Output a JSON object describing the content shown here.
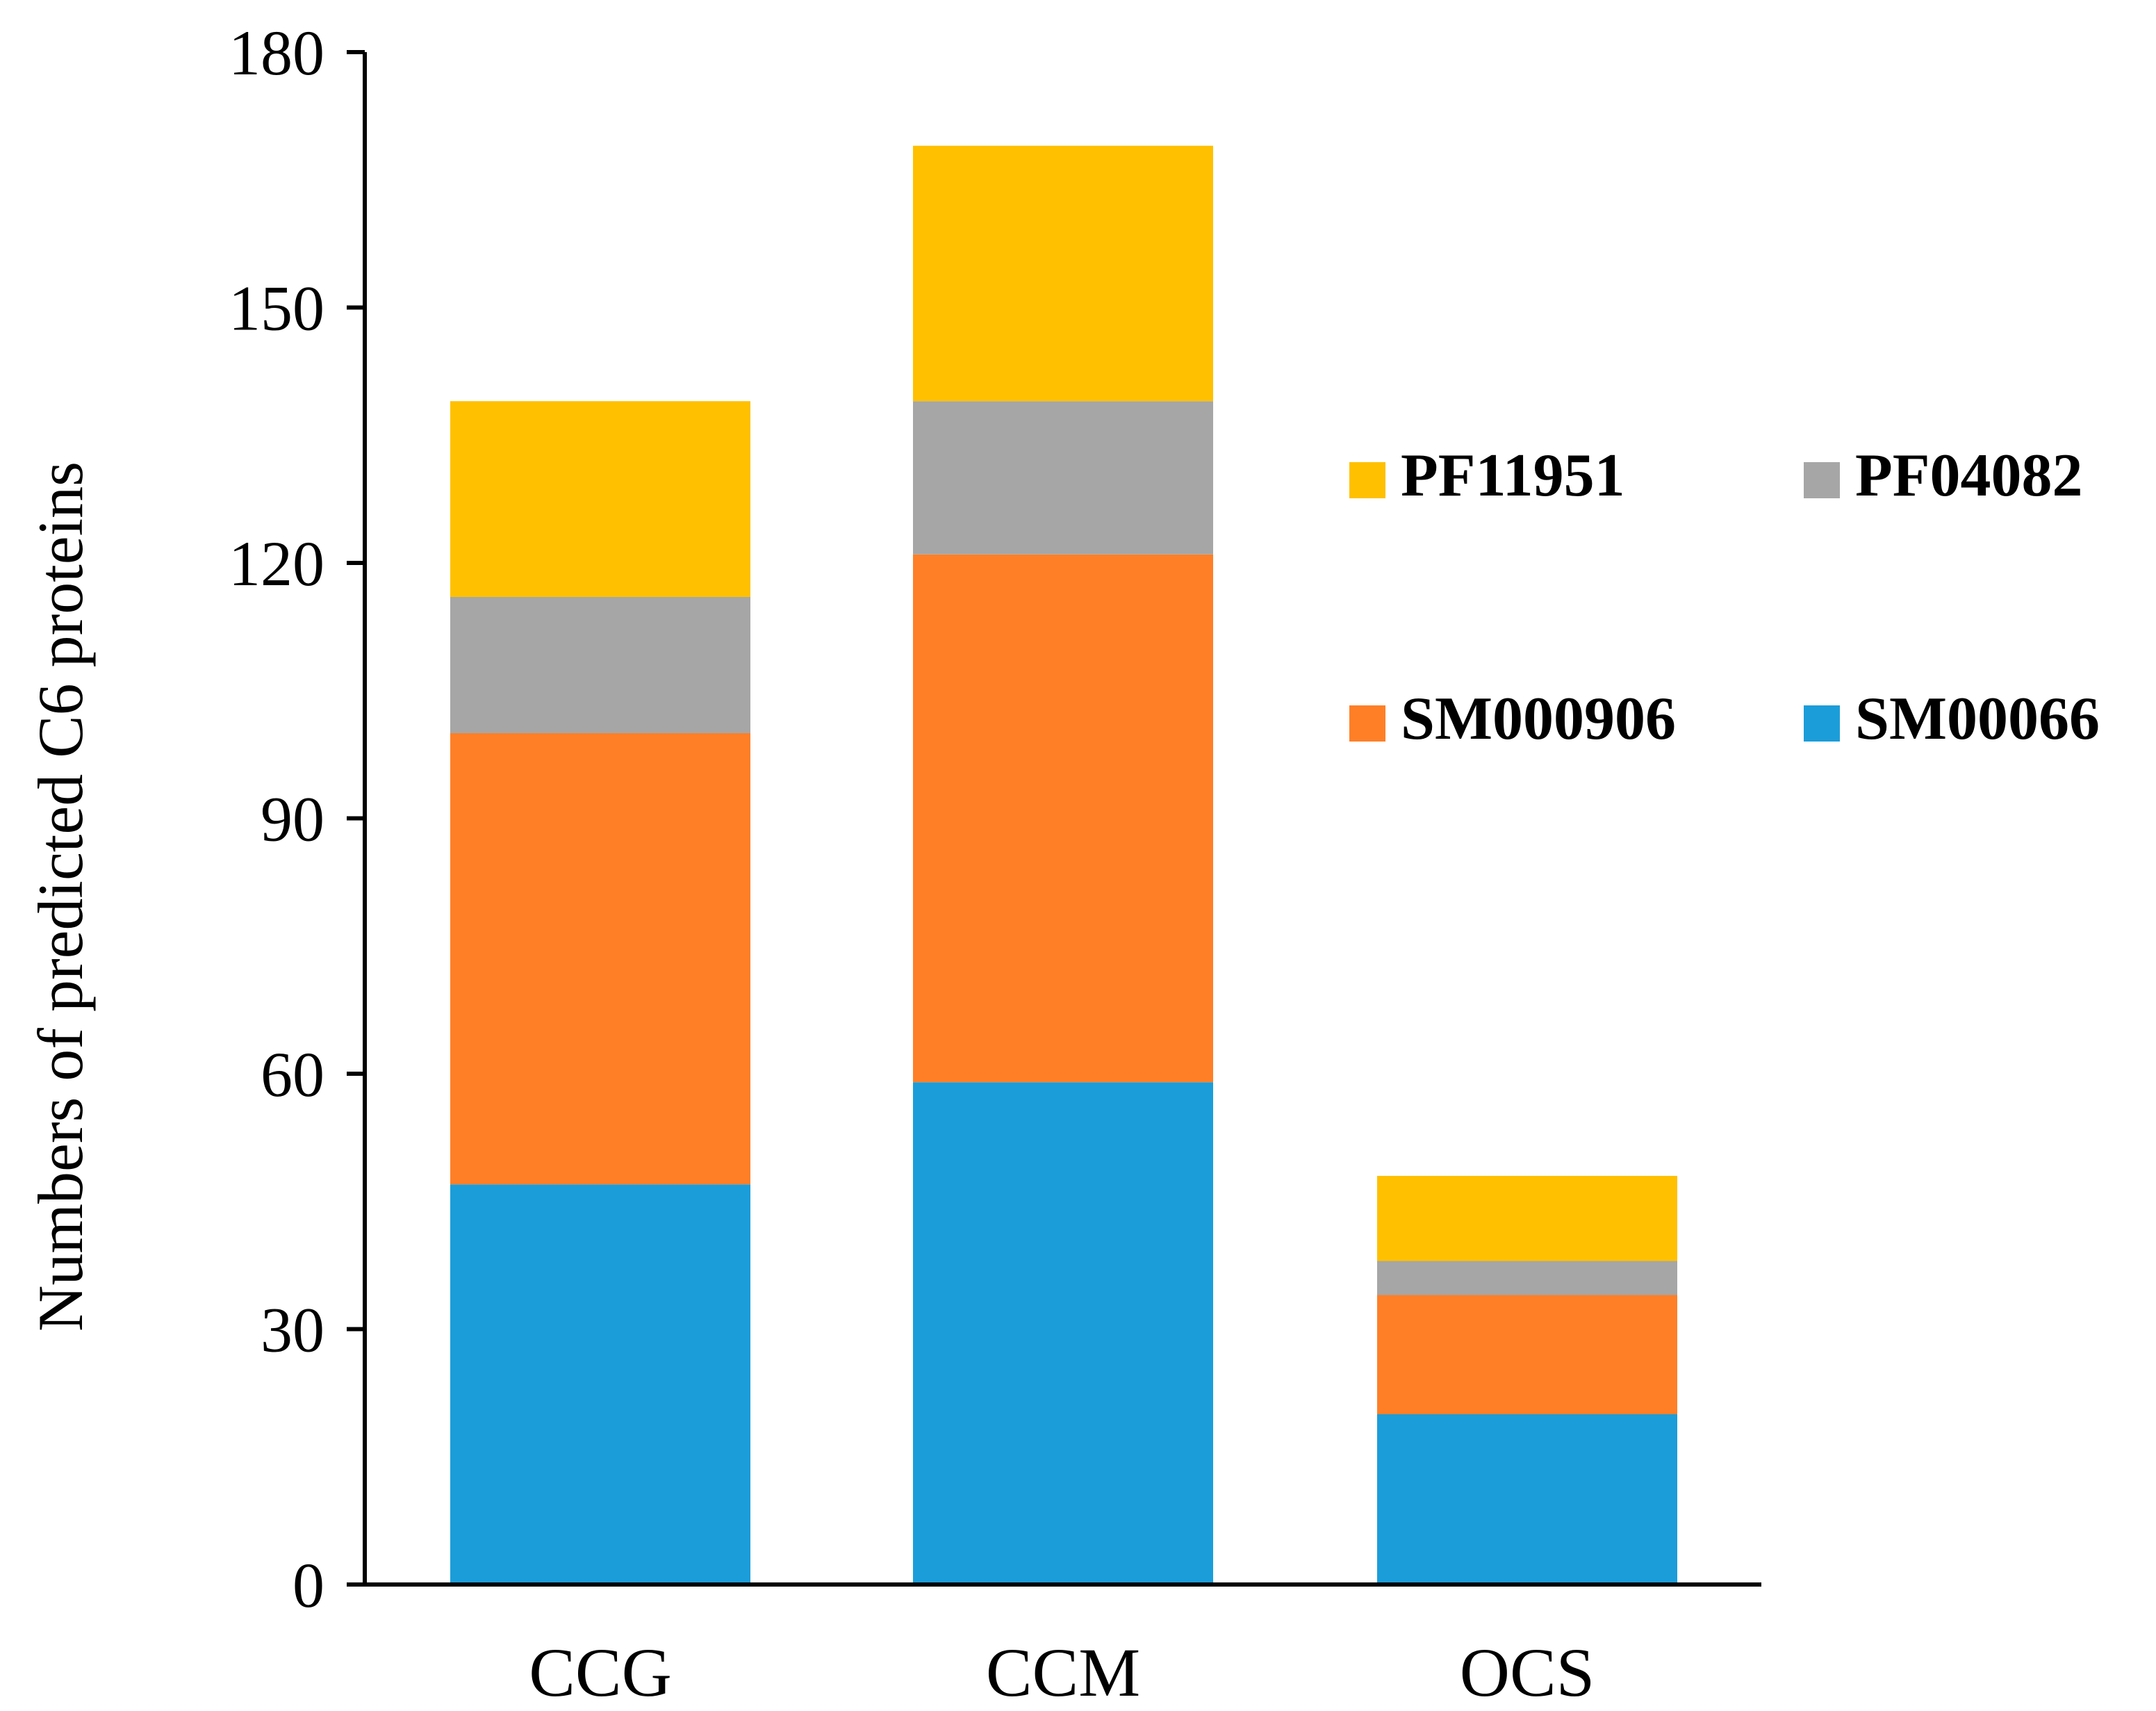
{
  "chart_data": {
    "type": "bar",
    "stacked": true,
    "title": "",
    "xlabel": "",
    "ylabel": "Numbers of predicted C6 proteins",
    "ylim": [
      0,
      180
    ],
    "yticks": [
      0,
      30,
      60,
      90,
      120,
      150,
      180
    ],
    "categories": [
      "CCG",
      "CCM",
      "OCS"
    ],
    "series": [
      {
        "name": "SM00066",
        "color": "#1B9DD9",
        "values": [
          47,
          59,
          20
        ]
      },
      {
        "name": "SM000906",
        "color": "#FF7F27",
        "values": [
          53,
          62,
          14
        ]
      },
      {
        "name": "PF04082",
        "color": "#A6A6A6",
        "values": [
          16,
          18,
          4
        ]
      },
      {
        "name": "PF11951",
        "color": "#FFC000",
        "values": [
          23,
          30,
          10
        ]
      }
    ],
    "legend": {
      "placement": "right",
      "order": [
        "PF11951",
        "PF04082",
        "SM000906",
        "SM00066"
      ]
    },
    "grid": false
  }
}
